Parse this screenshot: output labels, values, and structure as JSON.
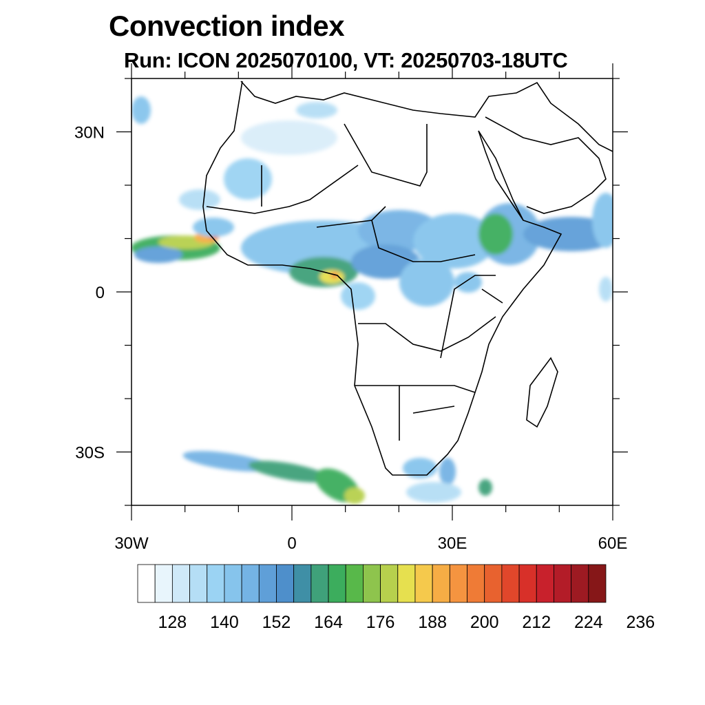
{
  "header": {
    "title": "Convection index",
    "subtitle": "Run: ICON 2025070100,  VT: 20250703-18UTC"
  },
  "map": {
    "lon_range": [
      -30,
      60
    ],
    "lat_range": [
      -40,
      40
    ],
    "lon_ticks": [
      {
        "value": -30,
        "label": "30W"
      },
      {
        "value": 0,
        "label": "0"
      },
      {
        "value": 30,
        "label": "30E"
      },
      {
        "value": 60,
        "label": "60E"
      }
    ],
    "lat_ticks": [
      {
        "value": 30,
        "label": "30N"
      },
      {
        "value": 0,
        "label": "0"
      },
      {
        "value": -30,
        "label": "30S"
      }
    ],
    "minor_lon_step": 10,
    "minor_lat_step": 10
  },
  "colorbar": {
    "labels": [
      "128",
      "140",
      "152",
      "164",
      "176",
      "188",
      "200",
      "212",
      "224",
      "236"
    ],
    "colors": [
      "#ffffff",
      "#e8f5fc",
      "#cfe9f8",
      "#b5def5",
      "#9bd3f3",
      "#86c4ec",
      "#74b3e4",
      "#5f9fd8",
      "#4e8fcb",
      "#3f8fa6",
      "#3fa17a",
      "#3cad5d",
      "#58b84a",
      "#8ec44d",
      "#b7d04d",
      "#e6e04f",
      "#f5c94c",
      "#f6ad45",
      "#f59440",
      "#ef7b36",
      "#e8622f",
      "#e1472b",
      "#d83029",
      "#c8212c",
      "#b31c28",
      "#9d1a22",
      "#861718"
    ]
  }
}
